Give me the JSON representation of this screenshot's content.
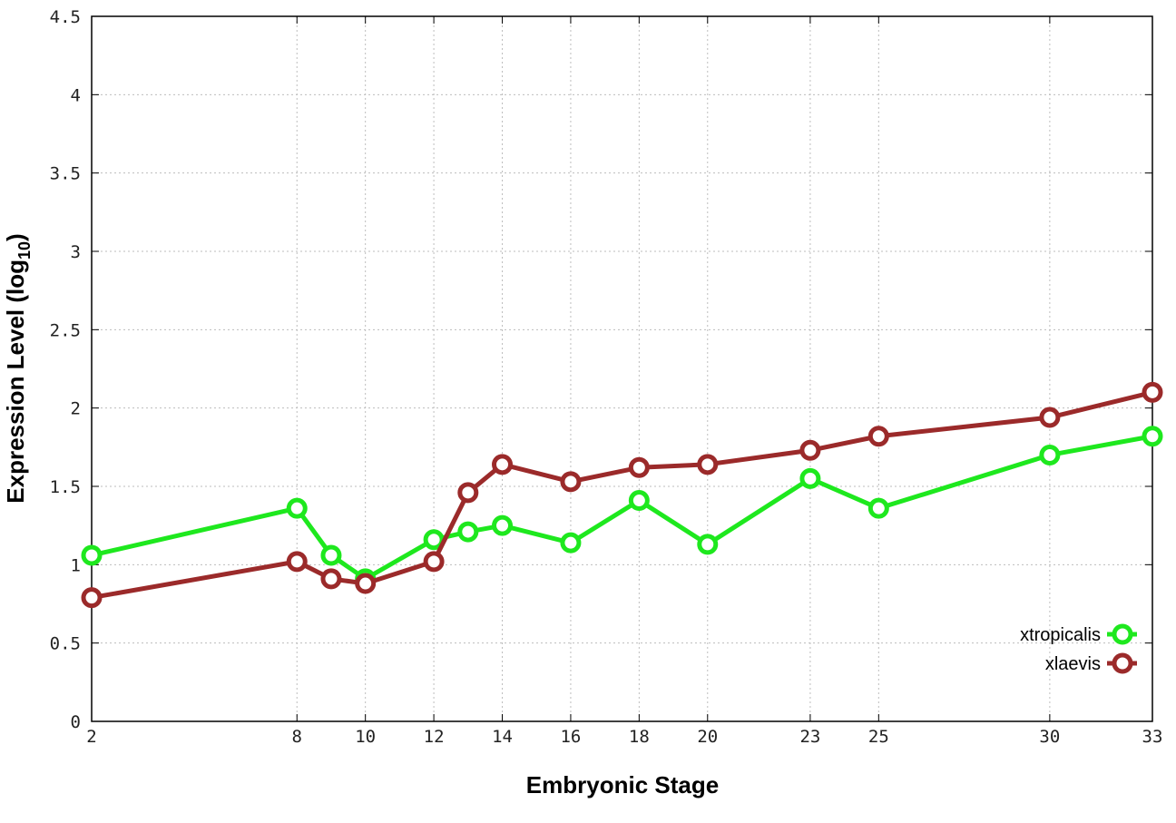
{
  "chart_data": {
    "type": "line",
    "xlabel": "Embryonic Stage",
    "ylabel": "Expression Level (log",
    "ylabel_sub": "10",
    "ylabel_end": ")",
    "xlim": [
      2,
      33
    ],
    "ylim": [
      0,
      4.5
    ],
    "xticks": [
      2,
      8,
      10,
      12,
      14,
      16,
      18,
      20,
      23,
      25,
      30,
      33
    ],
    "yticks": [
      0,
      0.5,
      1,
      1.5,
      2,
      2.5,
      3,
      3.5,
      4,
      4.5
    ],
    "ytick_labels": [
      "0",
      "0.5",
      "1",
      "1.5",
      "2",
      "2.5",
      "3",
      "3.5",
      "4",
      "4.5"
    ],
    "grid": true,
    "legend_position": "bottom-right",
    "x": [
      2,
      8,
      9,
      10,
      12,
      13,
      14,
      16,
      18,
      20,
      23,
      25,
      30,
      33
    ],
    "series": [
      {
        "name": "xtropicalis",
        "color": "#1ee81e",
        "values": [
          1.06,
          1.36,
          1.06,
          0.91,
          1.16,
          1.21,
          1.25,
          1.14,
          1.41,
          1.13,
          1.55,
          1.36,
          1.7,
          1.82
        ]
      },
      {
        "name": "xlaevis",
        "color": "#9b2a2a",
        "values": [
          0.79,
          1.02,
          0.91,
          0.88,
          1.02,
          1.46,
          1.64,
          1.53,
          1.62,
          1.64,
          1.73,
          1.82,
          1.94,
          2.1
        ]
      }
    ]
  }
}
